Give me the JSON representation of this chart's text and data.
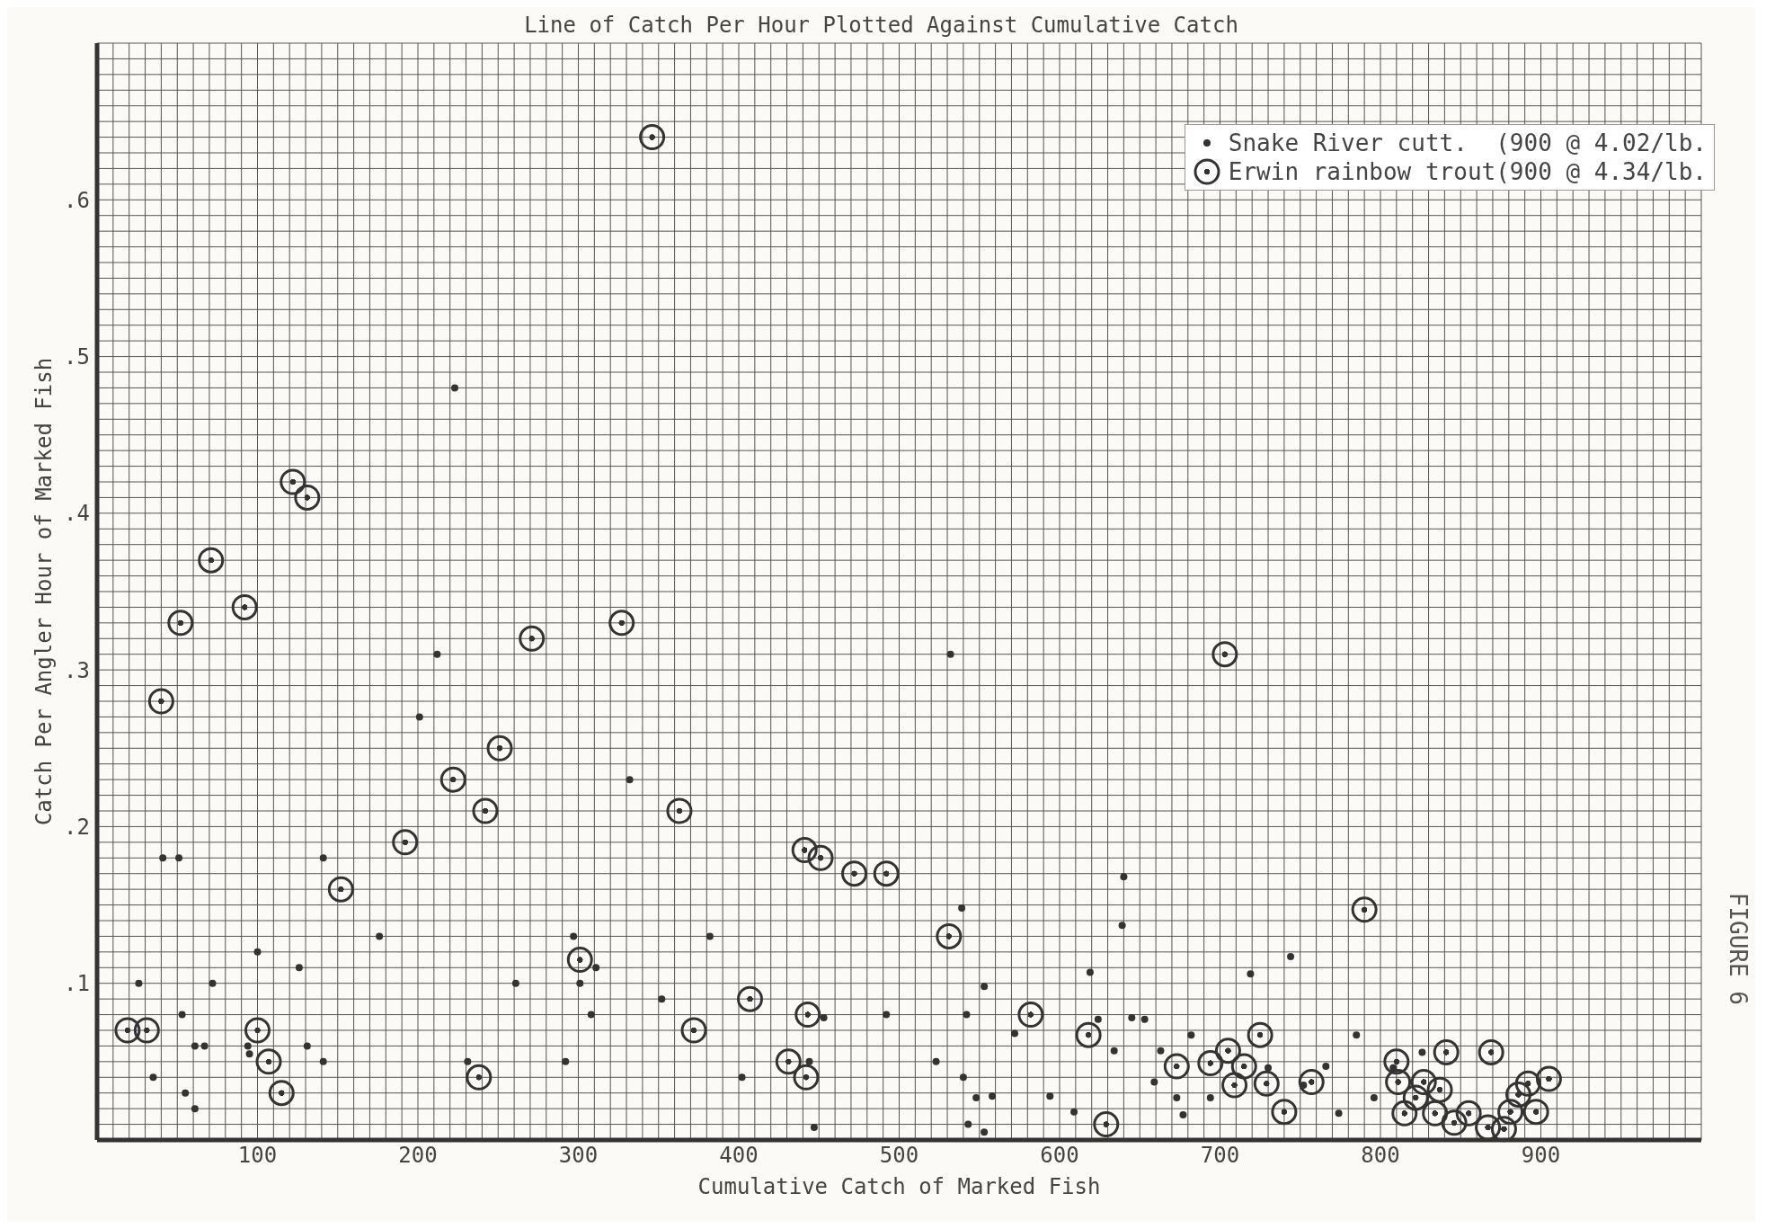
{
  "chart_data": {
    "type": "scatter",
    "title": "Line of Catch Per Hour Plotted Against Cumulative Catch",
    "xlabel": "Cumulative Catch of Marked Fish",
    "ylabel": "Catch Per Angler Hour of Marked Fish",
    "annotations": [
      "FIGURE 6"
    ],
    "xlim": [
      0,
      1000
    ],
    "xticks": [
      100,
      200,
      300,
      400,
      500,
      600,
      700,
      800,
      900
    ],
    "ylim": [
      0,
      0.7
    ],
    "yticks": [
      {
        "value": 0.1,
        "label": ".1"
      },
      {
        "value": 0.2,
        "label": ".2"
      },
      {
        "value": 0.3,
        "label": ".3"
      },
      {
        "value": 0.4,
        "label": ".4"
      },
      {
        "value": 0.5,
        "label": ".5"
      },
      {
        "value": 0.6,
        "label": ".6"
      }
    ],
    "grid": true,
    "legend": "top right",
    "marker": "circle",
    "series": [
      {
        "name": "Snake River cutt.  (900 @ 4.02/lb.",
        "color": "#333333",
        "x": [
          26,
          35,
          41,
          51,
          53,
          55,
          61,
          61,
          67,
          72,
          94,
          95,
          100,
          126,
          131,
          141,
          141,
          176,
          201,
          212,
          223,
          231,
          261,
          292,
          297,
          301,
          308,
          311,
          332,
          352,
          382,
          402,
          444,
          447,
          453,
          492,
          523,
          532,
          539,
          542,
          540,
          543,
          548,
          553,
          558,
          553,
          572,
          594,
          609,
          619,
          624,
          634,
          640,
          639,
          645,
          653,
          659,
          663,
          673,
          677,
          682,
          694,
          719,
          730,
          744,
          752,
          766,
          774,
          785,
          796,
          808,
          826
        ],
        "values": [
          0.1,
          0.04,
          0.18,
          0.18,
          0.08,
          0.03,
          0.02,
          0.06,
          0.06,
          0.1,
          0.06,
          0.055,
          0.12,
          0.11,
          0.06,
          0.05,
          0.18,
          0.13,
          0.27,
          0.31,
          0.48,
          0.05,
          0.1,
          0.05,
          0.13,
          0.1,
          0.08,
          0.11,
          0.23,
          0.09,
          0.13,
          0.04,
          0.05,
          0.008,
          0.078,
          0.08,
          0.05,
          0.31,
          0.148,
          0.08,
          0.04,
          0.01,
          0.027,
          0.098,
          0.028,
          0.005,
          0.068,
          0.028,
          0.018,
          0.107,
          0.077,
          0.057,
          0.168,
          0.137,
          0.078,
          0.077,
          0.037,
          0.057,
          0.027,
          0.016,
          0.067,
          0.027,
          0.106,
          0.046,
          0.117,
          0.035,
          0.047,
          0.017,
          0.067,
          0.027,
          0.046,
          0.056
        ]
      },
      {
        "name": "Erwin rainbow trout(900 @ 4.34/lb.",
        "color": "#333333",
        "x": [
          19,
          31,
          40,
          52,
          71,
          92,
          100,
          107,
          115,
          122,
          131,
          152,
          192,
          222,
          238,
          242,
          251,
          271,
          301,
          327,
          346,
          363,
          372,
          407,
          431,
          442,
          441,
          443,
          451,
          472,
          492,
          531,
          582,
          618,
          629,
          673,
          694,
          703,
          705,
          709,
          715,
          725,
          729,
          740,
          757,
          790,
          810,
          811,
          815,
          822,
          827,
          834,
          837,
          841,
          846,
          855,
          867,
          869,
          877,
          881,
          886,
          892,
          897,
          905
        ],
        "values": [
          0.07,
          0.07,
          0.28,
          0.33,
          0.37,
          0.34,
          0.07,
          0.05,
          0.03,
          0.42,
          0.41,
          0.16,
          0.19,
          0.23,
          0.04,
          0.21,
          0.25,
          0.32,
          0.115,
          0.33,
          0.64,
          0.21,
          0.07,
          0.09,
          0.05,
          0.04,
          0.185,
          0.08,
          0.18,
          0.17,
          0.17,
          0.13,
          0.08,
          0.067,
          0.01,
          0.047,
          0.049,
          0.31,
          0.057,
          0.035,
          0.047,
          0.067,
          0.036,
          0.018,
          0.037,
          0.147,
          0.05,
          0.037,
          0.017,
          0.027,
          0.037,
          0.017,
          0.032,
          0.056,
          0.011,
          0.017,
          0.008,
          0.056,
          0.007,
          0.018,
          0.029,
          0.036,
          0.018,
          0.039
        ]
      }
    ]
  }
}
